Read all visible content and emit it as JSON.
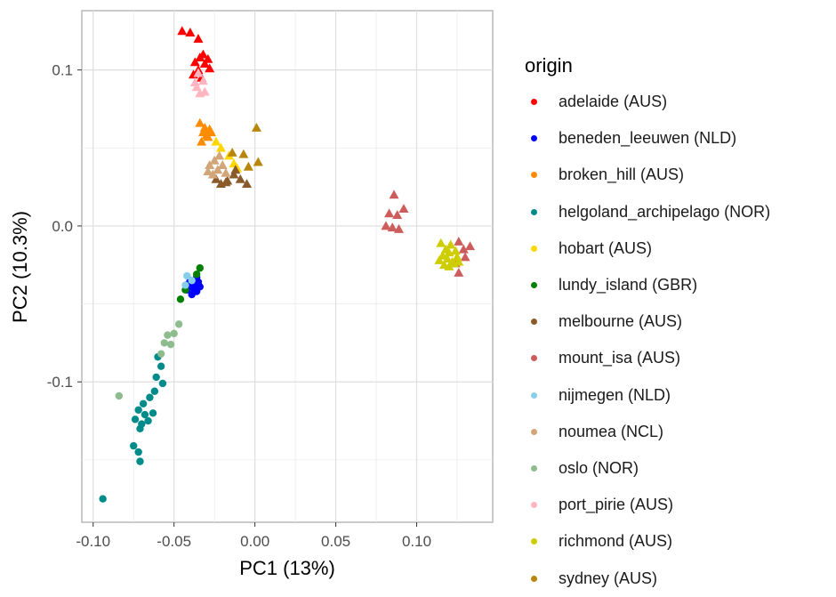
{
  "chart_data": {
    "type": "scatter",
    "xlabel": "PC1 (13%)",
    "ylabel": "PC2 (10.3%)",
    "xlim": [
      -0.107,
      0.147
    ],
    "ylim": [
      -0.19,
      0.138
    ],
    "x_ticks": [
      {
        "value": -0.1,
        "label": "-0.10"
      },
      {
        "value": -0.05,
        "label": "-0.05"
      },
      {
        "value": 0.0,
        "label": "0.00"
      },
      {
        "value": 0.05,
        "label": "0.05"
      },
      {
        "value": 0.1,
        "label": "0.10"
      }
    ],
    "y_ticks": [
      {
        "value": 0.1,
        "label": "0.1"
      },
      {
        "value": 0.0,
        "label": "0.0"
      },
      {
        "value": -0.1,
        "label": "-0.1"
      }
    ],
    "grid": true,
    "legend": {
      "title": "origin",
      "placement": "right"
    },
    "series": [
      {
        "name": "adelaide (AUS)",
        "color": "#ff0000",
        "shape": "triangle",
        "points": [
          [
            -0.045,
            0.125
          ],
          [
            -0.04,
            0.124
          ],
          [
            -0.035,
            0.12
          ],
          [
            -0.032,
            0.11
          ],
          [
            -0.029,
            0.107
          ],
          [
            -0.031,
            0.104
          ],
          [
            -0.035,
            0.1
          ],
          [
            -0.038,
            0.097
          ],
          [
            -0.033,
            0.095
          ],
          [
            -0.028,
            0.101
          ],
          [
            -0.034,
            0.108
          ],
          [
            -0.037,
            0.105
          ]
        ]
      },
      {
        "name": "beneden_leeuwen (NLD)",
        "color": "#0000ff",
        "shape": "circle",
        "points": [
          [
            -0.04,
            -0.035
          ],
          [
            -0.037,
            -0.038
          ],
          [
            -0.035,
            -0.036
          ],
          [
            -0.038,
            -0.04
          ],
          [
            -0.036,
            -0.042
          ],
          [
            -0.039,
            -0.044
          ],
          [
            -0.034,
            -0.039
          ],
          [
            -0.041,
            -0.037
          ],
          [
            -0.036,
            -0.033
          ],
          [
            -0.042,
            -0.041
          ]
        ]
      },
      {
        "name": "broken_hill (AUS)",
        "color": "#ff8c00",
        "shape": "triangle",
        "points": [
          [
            -0.034,
            0.066
          ],
          [
            -0.031,
            0.063
          ],
          [
            -0.028,
            0.062
          ],
          [
            -0.03,
            0.058
          ],
          [
            -0.033,
            0.054
          ],
          [
            -0.029,
            0.057
          ],
          [
            -0.027,
            0.06
          ],
          [
            -0.032,
            0.06
          ]
        ]
      },
      {
        "name": "helgoland_archipelago (NOR)",
        "color": "#008b8b",
        "shape": "circle",
        "points": [
          [
            -0.06,
            -0.084
          ],
          [
            -0.058,
            -0.09
          ],
          [
            -0.061,
            -0.097
          ],
          [
            -0.057,
            -0.101
          ],
          [
            -0.062,
            -0.106
          ],
          [
            -0.065,
            -0.11
          ],
          [
            -0.069,
            -0.114
          ],
          [
            -0.072,
            -0.118
          ],
          [
            -0.068,
            -0.121
          ],
          [
            -0.066,
            -0.125
          ],
          [
            -0.07,
            -0.127
          ],
          [
            -0.074,
            -0.124
          ],
          [
            -0.063,
            -0.12
          ],
          [
            -0.071,
            -0.13
          ],
          [
            -0.075,
            -0.141
          ],
          [
            -0.072,
            -0.145
          ],
          [
            -0.071,
            -0.151
          ],
          [
            -0.094,
            -0.175
          ]
        ]
      },
      {
        "name": "hobart (AUS)",
        "color": "#ffd700",
        "shape": "triangle",
        "points": [
          [
            -0.024,
            0.054
          ],
          [
            -0.021,
            0.05
          ],
          [
            -0.016,
            0.045
          ],
          [
            -0.013,
            0.04
          ],
          [
            -0.011,
            0.037
          ]
        ]
      },
      {
        "name": "lundy_island (GBR)",
        "color": "#008000",
        "shape": "circle",
        "points": [
          [
            -0.046,
            -0.047
          ],
          [
            -0.043,
            -0.041
          ],
          [
            -0.034,
            -0.027
          ],
          [
            -0.036,
            -0.031
          ]
        ]
      },
      {
        "name": "melbourne (AUS)",
        "color": "#8b5a2b",
        "shape": "triangle",
        "points": [
          [
            -0.024,
            0.03
          ],
          [
            -0.021,
            0.027
          ],
          [
            -0.017,
            0.029
          ],
          [
            -0.013,
            0.033
          ],
          [
            -0.009,
            0.03
          ],
          [
            -0.005,
            0.027
          ],
          [
            -0.012,
            0.036
          ],
          [
            -0.018,
            0.028
          ]
        ]
      },
      {
        "name": "mount_isa (AUS)",
        "color": "#cd5c5c",
        "shape": "triangle",
        "points": [
          [
            0.086,
            0.02
          ],
          [
            0.083,
            0.008
          ],
          [
            0.088,
            0.007
          ],
          [
            0.092,
            0.011
          ],
          [
            0.081,
            0.0
          ],
          [
            0.085,
            -0.001
          ],
          [
            0.089,
            -0.002
          ],
          [
            0.126,
            -0.01
          ],
          [
            0.129,
            -0.015
          ],
          [
            0.133,
            -0.013
          ],
          [
            0.124,
            -0.024
          ],
          [
            0.126,
            -0.03
          ],
          [
            0.13,
            -0.02
          ]
        ]
      },
      {
        "name": "nijmegen (NLD)",
        "color": "#87ceeb",
        "shape": "circle",
        "points": [
          [
            -0.042,
            -0.032
          ],
          [
            -0.039,
            -0.035
          ],
          [
            -0.043,
            -0.038
          ]
        ]
      },
      {
        "name": "noumea (NCL)",
        "color": "#d2a679",
        "shape": "triangle",
        "points": [
          [
            -0.028,
            0.039
          ],
          [
            -0.025,
            0.042
          ],
          [
            -0.023,
            0.036
          ],
          [
            -0.02,
            0.039
          ],
          [
            -0.026,
            0.033
          ],
          [
            -0.022,
            0.045
          ],
          [
            -0.029,
            0.035
          ],
          [
            -0.018,
            0.034
          ]
        ]
      },
      {
        "name": "oslo (NOR)",
        "color": "#8fbc8f",
        "shape": "circle",
        "points": [
          [
            -0.047,
            -0.063
          ],
          [
            -0.05,
            -0.069
          ],
          [
            -0.054,
            -0.07
          ],
          [
            -0.052,
            -0.076
          ],
          [
            -0.056,
            -0.075
          ],
          [
            -0.058,
            -0.082
          ],
          [
            -0.084,
            -0.109
          ]
        ]
      },
      {
        "name": "port_pirie (AUS)",
        "color": "#ffb6c1",
        "shape": "triangle",
        "points": [
          [
            -0.035,
            0.098
          ],
          [
            -0.032,
            0.093
          ],
          [
            -0.036,
            0.089
          ],
          [
            -0.031,
            0.086
          ],
          [
            -0.034,
            0.085
          ],
          [
            -0.037,
            0.092
          ]
        ]
      },
      {
        "name": "richmond (AUS)",
        "color": "#cdcd00",
        "shape": "triangle",
        "points": [
          [
            0.115,
            -0.011
          ],
          [
            0.118,
            -0.015
          ],
          [
            0.121,
            -0.012
          ],
          [
            0.124,
            -0.016
          ],
          [
            0.116,
            -0.019
          ],
          [
            0.119,
            -0.021
          ],
          [
            0.122,
            -0.023
          ],
          [
            0.125,
            -0.02
          ],
          [
            0.117,
            -0.025
          ],
          [
            0.12,
            -0.026
          ],
          [
            0.123,
            -0.024
          ],
          [
            0.114,
            -0.022
          ],
          [
            0.12,
            -0.017
          ],
          [
            0.126,
            -0.023
          ]
        ]
      },
      {
        "name": "sydney (AUS)",
        "color": "#b8860b",
        "shape": "triangle",
        "points": [
          [
            0.001,
            0.063
          ],
          [
            0.002,
            0.041
          ],
          [
            -0.007,
            0.046
          ],
          [
            -0.004,
            0.038
          ],
          [
            -0.014,
            0.047
          ]
        ]
      }
    ]
  }
}
